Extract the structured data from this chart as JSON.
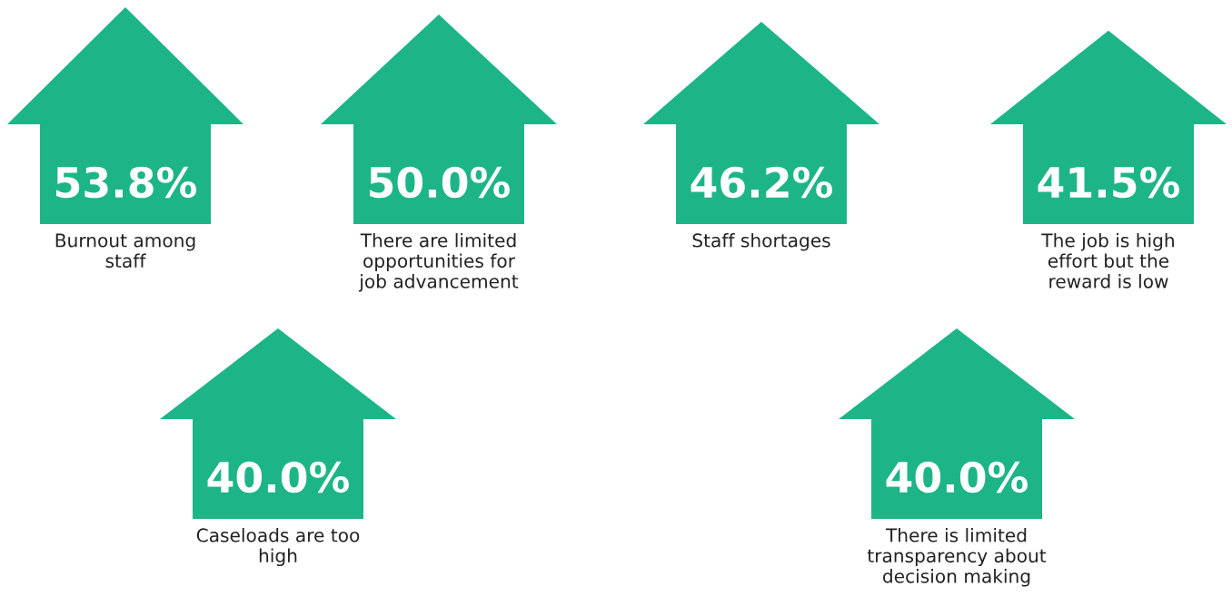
{
  "chart_data": {
    "type": "other",
    "categories": [
      "Burnout among\nstaff",
      "There are limited\nopportunities for\njob advancement",
      "Staff shortages",
      "The job is high\neffort but the\nreward is low",
      "Caseloads are too\nhigh",
      "There is limited\ntransparency about\ndecision making"
    ],
    "values": [
      53.8,
      50.0,
      46.2,
      41.5,
      40.0,
      40.0
    ],
    "value_labels": [
      "53.8%",
      "50.0%",
      "46.2%",
      "41.5%",
      "40.0%",
      "40.0%"
    ],
    "color": "#1db588"
  }
}
